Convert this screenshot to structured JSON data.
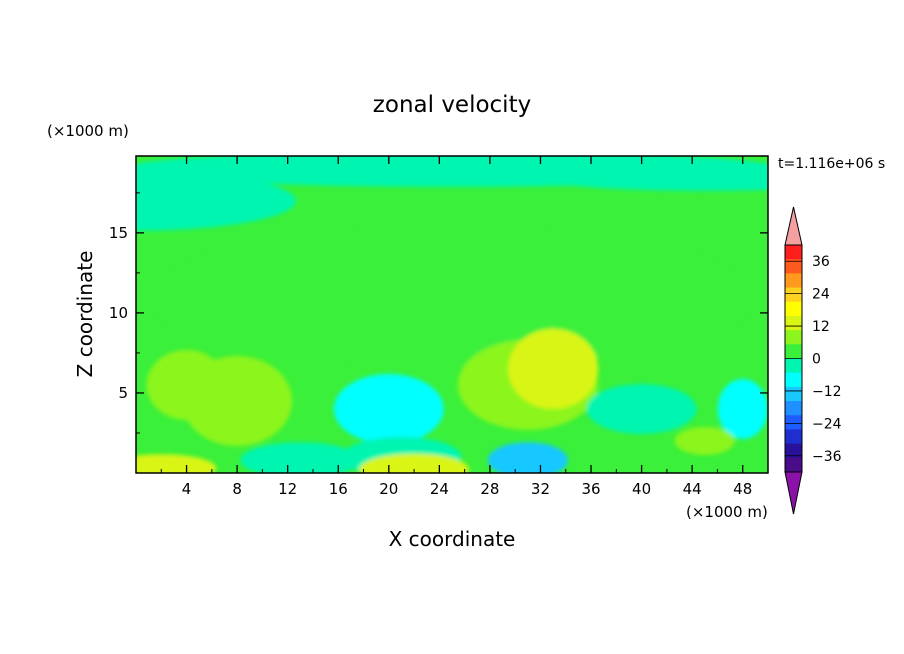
{
  "chart_data": {
    "type": "heatmap",
    "title": "zonal velocity",
    "xlabel": "X coordinate",
    "ylabel": "Z coordinate",
    "x_unit_label": "(×1000 m)",
    "y_unit_label": "(×1000 m)",
    "time_label": "t=1.116e+06 s",
    "xlim": [
      0,
      50
    ],
    "ylim": [
      0,
      19.8
    ],
    "x_ticks": [
      "4",
      "8",
      "12",
      "16",
      "20",
      "24",
      "28",
      "32",
      "36",
      "40",
      "44",
      "48"
    ],
    "y_ticks": [
      "5",
      "10",
      "15"
    ],
    "colorbar": {
      "tick_labels": [
        "36",
        "24",
        "12",
        "0",
        "-12",
        "-24",
        "-36"
      ],
      "levels": [
        -42,
        -36,
        -30,
        -24,
        -18,
        -12,
        -6,
        0,
        6,
        12,
        18,
        24,
        30,
        36,
        42
      ],
      "colors": [
        "#4b0c8a",
        "#2a1199",
        "#1f2fcf",
        "#1e5cff",
        "#1e90ff",
        "#18c8ff",
        "#00ffff",
        "#00f5b0",
        "#3af03a",
        "#8cf51e",
        "#d9f514",
        "#ffff00",
        "#ffd21e",
        "#ff9a1e",
        "#ff5a1e",
        "#ff1e1e"
      ],
      "over_color": "#f4a0a0",
      "under_color": "#8b12a8"
    },
    "background_value": 2,
    "features": [
      {
        "x": 0,
        "z": 17,
        "value": -2
      },
      {
        "x": 25,
        "z": 19,
        "value": -3
      },
      {
        "x": 45,
        "z": 18.5,
        "value": -3
      },
      {
        "x": 25,
        "z": 11,
        "value": 3
      },
      {
        "x": 8,
        "z": 4.5,
        "value": 8
      },
      {
        "x": 4,
        "z": 5.5,
        "value": 10
      },
      {
        "x": 20,
        "z": 4,
        "value": -8
      },
      {
        "x": 21,
        "z": 1,
        "value": -6
      },
      {
        "x": 22,
        "z": 0.2,
        "value": 14
      },
      {
        "x": 2,
        "z": 0.3,
        "value": 16
      },
      {
        "x": 31,
        "z": 5.5,
        "value": 10
      },
      {
        "x": 33,
        "z": 6.5,
        "value": 13
      },
      {
        "x": 31,
        "z": 0.8,
        "value": -14
      },
      {
        "x": 40,
        "z": 4,
        "value": -4
      },
      {
        "x": 48,
        "z": 4,
        "value": -8
      },
      {
        "x": 45,
        "z": 2,
        "value": 8
      },
      {
        "x": 13,
        "z": 0.8,
        "value": -4
      }
    ]
  }
}
